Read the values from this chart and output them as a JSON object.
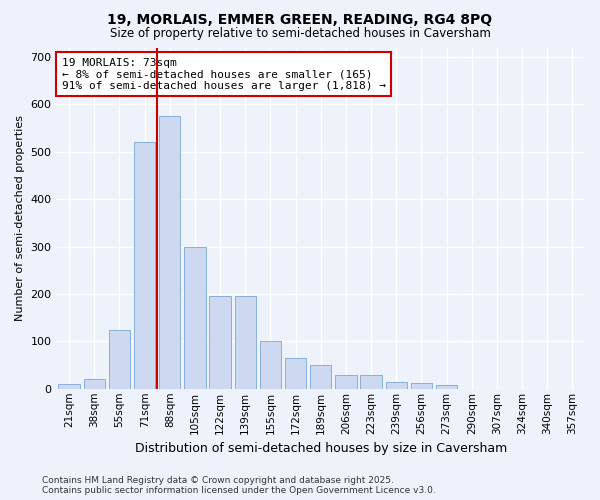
{
  "title1": "19, MORLAIS, EMMER GREEN, READING, RG4 8PQ",
  "title2": "Size of property relative to semi-detached houses in Caversham",
  "xlabel": "Distribution of semi-detached houses by size in Caversham",
  "ylabel": "Number of semi-detached properties",
  "bar_color": "#ccd9f0",
  "bar_edge_color": "#8ab0d8",
  "background_color": "#eef2fb",
  "grid_color": "#ffffff",
  "categories": [
    "21sqm",
    "38sqm",
    "55sqm",
    "71sqm",
    "88sqm",
    "105sqm",
    "122sqm",
    "139sqm",
    "155sqm",
    "172sqm",
    "189sqm",
    "206sqm",
    "223sqm",
    "239sqm",
    "256sqm",
    "273sqm",
    "290sqm",
    "307sqm",
    "324sqm",
    "340sqm",
    "357sqm"
  ],
  "values": [
    10,
    20,
    125,
    520,
    575,
    300,
    195,
    195,
    100,
    65,
    50,
    30,
    30,
    15,
    13,
    8,
    0,
    0,
    0,
    0,
    0
  ],
  "ylim": [
    0,
    720
  ],
  "yticks": [
    0,
    100,
    200,
    300,
    400,
    500,
    600,
    700
  ],
  "red_line_index": 4,
  "marker_label": "19 MORLAIS: 73sqm",
  "marker_pct_smaller": "8% of semi-detached houses are smaller (165)",
  "marker_pct_larger": "91% of semi-detached houses are larger (1,818)",
  "red_line_color": "#cc0000",
  "annotation_box_color": "#ffffff",
  "annotation_box_edge_color": "#cc0000",
  "footer1": "Contains HM Land Registry data © Crown copyright and database right 2025.",
  "footer2": "Contains public sector information licensed under the Open Government Licence v3.0."
}
